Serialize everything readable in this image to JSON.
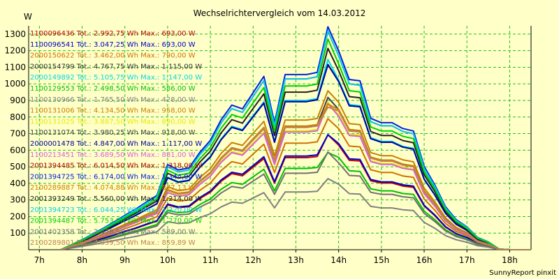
{
  "chart_data": {
    "type": "line",
    "title": "Wechselrichtervergleich vom 14.03.2012",
    "ylabel": "W",
    "footer": "SunnyReport pinxit",
    "ylim": [
      0,
      1350
    ],
    "xlim": [
      6.75,
      18.5
    ],
    "grid": true,
    "legend_placement": "top-left",
    "yticks": [
      100,
      200,
      300,
      400,
      500,
      600,
      700,
      800,
      900,
      1000,
      1100,
      1200,
      1300
    ],
    "xticks": [
      {
        "value": 7,
        "label": "7h"
      },
      {
        "value": 8,
        "label": "8h"
      },
      {
        "value": 9,
        "label": "9h"
      },
      {
        "value": 10,
        "label": "10h"
      },
      {
        "value": 11,
        "label": "11h"
      },
      {
        "value": 12,
        "label": "12h"
      },
      {
        "value": 13,
        "label": "13h"
      },
      {
        "value": 14,
        "label": "14h"
      },
      {
        "value": 15,
        "label": "15h"
      },
      {
        "value": 16,
        "label": "16h"
      },
      {
        "value": 17,
        "label": "17h"
      },
      {
        "value": 18,
        "label": "18h"
      }
    ],
    "x": [
      7.5,
      7.75,
      8,
      8.25,
      8.5,
      8.75,
      9,
      9.25,
      9.5,
      9.75,
      10,
      10.25,
      10.5,
      10.75,
      11,
      11.25,
      11.5,
      11.75,
      12,
      12.25,
      12.5,
      12.75,
      13,
      13.25,
      13.5,
      13.75,
      14,
      14.25,
      14.5,
      14.75,
      15,
      15.25,
      15.5,
      15.75,
      16,
      16.25,
      16.5,
      16.75,
      17,
      17.25,
      17.5,
      17.75,
      18,
      18.25,
      18.5
    ],
    "series": [
      {
        "name": "1100096436 Tot.: 2.992,75 Wh Max.: 693,00 W",
        "color": "#c00000",
        "values": [
          0,
          16,
          31,
          49,
          68,
          88,
          109,
          128,
          151,
          172,
          270,
          253,
          259,
          308,
          347,
          412,
          459,
          446,
          498,
          549,
          402,
          555,
          555,
          555,
          562,
          693,
          631,
          539,
          535,
          416,
          402,
          402,
          384,
          376,
          264,
          205,
          136,
          95,
          73,
          39,
          25,
          2,
          0,
          0,
          0
        ]
      },
      {
        "name": "1100096541 Tot.: 3.047,25 Wh Max.: 693,00 W",
        "color": "#0000c8",
        "values": [
          0,
          16,
          32,
          50,
          70,
          90,
          111,
          131,
          154,
          175,
          275,
          258,
          264,
          314,
          354,
          420,
          467,
          455,
          507,
          560,
          410,
          565,
          565,
          565,
          572,
          693,
          640,
          548,
          544,
          423,
          409,
          409,
          391,
          383,
          268,
          209,
          139,
          97,
          74,
          40,
          25,
          2,
          0,
          0,
          0
        ]
      },
      {
        "name": "2000150622 Tot.: 3.462,00 Wh Max.: 790,00 W",
        "color": "#d07000",
        "values": [
          0,
          18,
          36,
          57,
          79,
          102,
          126,
          149,
          175,
          199,
          312,
          293,
          300,
          357,
          402,
          477,
          531,
          517,
          577,
          636,
          466,
          642,
          642,
          642,
          650,
          790,
          730,
          625,
          620,
          482,
          466,
          466,
          445,
          436,
          306,
          238,
          158,
          110,
          85,
          45,
          29,
          2,
          0,
          0,
          0
        ]
      },
      {
        "name": "2000154799 Tot.: 4.767,75 Wh Max.: 1.115,00 W",
        "color": "#303030",
        "values": [
          0,
          25,
          50,
          80,
          110,
          142,
          175,
          206,
          243,
          277,
          434,
          407,
          417,
          496,
          559,
          663,
          738,
          719,
          802,
          884,
          648,
          893,
          893,
          893,
          904,
          1115,
          1015,
          868,
          862,
          670,
          648,
          648,
          619,
          606,
          425,
          330,
          219,
          153,
          117,
          63,
          40,
          3,
          0,
          0,
          0
        ]
      },
      {
        "name": "2000149892 Tot.: 5.105,75 Wh Max.: 1.147,00 W",
        "color": "#00d8e8",
        "values": [
          0,
          25,
          50,
          80,
          110,
          143,
          176,
          208,
          244,
          279,
          437,
          410,
          420,
          500,
          563,
          668,
          744,
          724,
          808,
          891,
          653,
          900,
          900,
          900,
          911,
          1147,
          1023,
          875,
          868,
          675,
          653,
          653,
          623,
          611,
          428,
          333,
          221,
          154,
          118,
          63,
          40,
          3,
          0,
          0,
          0
        ]
      },
      {
        "name": "1100129553 Tot.: 2.498,50 Wh Max.: 586,00 W",
        "color": "#00c000",
        "values": [
          0,
          14,
          28,
          44,
          60,
          78,
          96,
          113,
          133,
          152,
          238,
          223,
          229,
          272,
          306,
          364,
          405,
          394,
          440,
          485,
          355,
          490,
          490,
          490,
          496,
          586,
          557,
          476,
          472,
          367,
          355,
          355,
          339,
          333,
          233,
          181,
          120,
          84,
          64,
          34,
          22,
          2,
          0,
          0,
          0
        ]
      },
      {
        "name": "1100130966 Tot.: 1.765,50 Wh Max.: 428,00 W",
        "color": "#808080",
        "values": [
          0,
          10,
          20,
          31,
          43,
          55,
          68,
          80,
          94,
          108,
          169,
          158,
          162,
          193,
          217,
          258,
          287,
          280,
          312,
          344,
          252,
          348,
          348,
          348,
          352,
          428,
          395,
          338,
          335,
          261,
          252,
          252,
          241,
          236,
          165,
          129,
          85,
          60,
          45,
          24,
          15,
          1,
          0,
          0,
          0
        ]
      },
      {
        "name": "1100131006 Tot.: 4.134,50 Wh Max.: 958,00 W",
        "color": "#c88000",
        "values": [
          0,
          22,
          44,
          70,
          96,
          124,
          153,
          180,
          212,
          242,
          380,
          356,
          365,
          434,
          489,
          580,
          646,
          629,
          702,
          774,
          567,
          782,
          782,
          782,
          791,
          958,
          889,
          760,
          754,
          586,
          567,
          567,
          542,
          530,
          372,
          289,
          192,
          134,
          103,
          55,
          35,
          3,
          0,
          0,
          0
        ]
      },
      {
        "name": "1100131025 Tot.: 3.887,50 Wh Max.: 890,00 W",
        "color": "#e8e800",
        "values": [
          0,
          20,
          40,
          64,
          88,
          114,
          140,
          165,
          194,
          222,
          348,
          327,
          335,
          398,
          448,
          532,
          592,
          576,
          643,
          709,
          520,
          717,
          717,
          717,
          725,
          890,
          814,
          696,
          691,
          537,
          520,
          520,
          497,
          486,
          341,
          265,
          176,
          123,
          94,
          50,
          32,
          2,
          0,
          0,
          0
        ]
      },
      {
        "name": "1100131074 Tot.: 3.980,25 Wh Max.: 918,00 W",
        "color": "#404040",
        "values": [
          0,
          21,
          42,
          67,
          92,
          118,
          146,
          172,
          202,
          231,
          362,
          340,
          348,
          414,
          466,
          553,
          615,
          599,
          669,
          737,
          540,
          745,
          745,
          745,
          754,
          918,
          846,
          724,
          718,
          558,
          540,
          540,
          516,
          505,
          354,
          275,
          183,
          128,
          98,
          52,
          33,
          3,
          0,
          0,
          0
        ]
      },
      {
        "name": "2000001478 Tot.: 4.847,00 Wh Max.: 1.117,00 W",
        "color": "#0000a0",
        "values": [
          0,
          25,
          50,
          80,
          110,
          142,
          175,
          206,
          243,
          277,
          434,
          407,
          417,
          496,
          559,
          663,
          738,
          719,
          802,
          884,
          648,
          893,
          893,
          893,
          904,
          1117,
          1015,
          868,
          862,
          670,
          648,
          648,
          619,
          606,
          425,
          330,
          219,
          153,
          117,
          63,
          40,
          3,
          0,
          0,
          0
        ]
      },
      {
        "name": "1100213451 Tot.: 3.689,50 Wh Max.: 881,00 W",
        "color": "#d860d8",
        "values": [
          0,
          20,
          40,
          63,
          87,
          112,
          138,
          163,
          192,
          219,
          344,
          323,
          331,
          393,
          443,
          526,
          585,
          570,
          636,
          701,
          514,
          709,
          709,
          709,
          717,
          881,
          805,
          689,
          683,
          531,
          514,
          514,
          491,
          481,
          337,
          262,
          174,
          121,
          93,
          50,
          32,
          2,
          0,
          0,
          0
        ]
      },
      {
        "name": "2001394485 Tot.: 6.014,50 Wh Max.: 1.318,00 W",
        "color": "#b00000",
        "values": [
          0,
          29,
          58,
          92,
          126,
          163,
          201,
          238,
          280,
          319,
          500,
          469,
          481,
          572,
          644,
          764,
          851,
          828,
          924,
          1020,
          747,
          1030,
          1030,
          1030,
          1043,
          1318,
          1170,
          1000,
          992,
          772,
          747,
          747,
          713,
          699,
          490,
          380,
          252,
          176,
          135,
          72,
          46,
          4,
          0,
          0,
          0
        ]
      },
      {
        "name": "2001394725 Tot.: 6.174,00 Wh Max.: 1.344,00 W",
        "color": "#0020e0",
        "values": [
          0,
          30,
          60,
          95,
          130,
          168,
          207,
          244,
          287,
          327,
          513,
          481,
          493,
          586,
          660,
          783,
          872,
          849,
          947,
          1045,
          766,
          1056,
          1056,
          1056,
          1069,
          1344,
          1200,
          1026,
          1018,
          792,
          766,
          766,
          731,
          716,
          502,
          390,
          259,
          181,
          138,
          74,
          47,
          4,
          0,
          0,
          0
        ]
      },
      {
        "name": "2100289887 Tot.: 4.074,88 Wh Max.: 877,13 W",
        "color": "#d08000",
        "values": [
          0,
          21,
          42,
          67,
          92,
          118,
          146,
          172,
          202,
          231,
          362,
          340,
          348,
          414,
          466,
          553,
          615,
          599,
          669,
          737,
          540,
          745,
          745,
          745,
          754,
          877,
          846,
          724,
          718,
          558,
          540,
          540,
          516,
          505,
          354,
          275,
          183,
          128,
          98,
          52,
          33,
          3,
          0,
          0,
          0
        ]
      },
      {
        "name": "2001393249 Tot.: 5.560,00 Wh Max.: 1.214,00 W",
        "color": "#202020",
        "values": [
          0,
          27,
          54,
          85,
          117,
          151,
          186,
          219,
          258,
          294,
          461,
          432,
          443,
          527,
          594,
          704,
          784,
          763,
          852,
          940,
          689,
          950,
          950,
          950,
          962,
          1214,
          1080,
          923,
          916,
          713,
          689,
          689,
          658,
          645,
          452,
          351,
          233,
          163,
          124,
          67,
          43,
          3,
          0,
          0,
          0
        ]
      },
      {
        "name": "2001394723 Tot.: 6.044,25 Wh Max.: 1.320,00 W",
        "color": "#00d0f0",
        "values": [
          0,
          29,
          58,
          92,
          126,
          163,
          201,
          238,
          280,
          319,
          500,
          469,
          481,
          572,
          644,
          764,
          851,
          828,
          924,
          1020,
          747,
          1030,
          1030,
          1030,
          1043,
          1320,
          1170,
          1000,
          992,
          772,
          747,
          747,
          713,
          699,
          490,
          380,
          252,
          176,
          135,
          72,
          46,
          4,
          0,
          0,
          0
        ]
      },
      {
        "name": "2001394487 Tot.: 5.753,00 Wh Max.: 1.270,00 W",
        "color": "#00d000",
        "values": [
          0,
          28,
          56,
          88,
          121,
          156,
          193,
          228,
          268,
          306,
          479,
          449,
          461,
          548,
          617,
          732,
          815,
          794,
          886,
          977,
          716,
          987,
          987,
          987,
          999,
          1270,
          1121,
          959,
          951,
          740,
          716,
          716,
          684,
          670,
          470,
          365,
          242,
          169,
          129,
          69,
          44,
          4,
          0,
          0,
          0
        ]
      },
      {
        "name": "2001402358 Tot.: 2.478,50 Wh Max.: 589,00 W",
        "color": "#707070",
        "values": [
          0,
          13,
          26,
          41,
          57,
          73,
          90,
          106,
          125,
          143,
          224,
          210,
          215,
          256,
          288,
          342,
          381,
          371,
          414,
          456,
          334,
          461,
          461,
          461,
          467,
          589,
          524,
          448,
          444,
          346,
          334,
          334,
          319,
          313,
          219,
          170,
          113,
          79,
          60,
          32,
          21,
          2,
          0,
          0,
          0
        ]
      },
      {
        "name": "2100289801 Tot.: 4.039,50 Wh Max.: 859,89 W",
        "color": "#c08050",
        "values": [
          0,
          21,
          42,
          67,
          91,
          117,
          144,
          170,
          200,
          228,
          358,
          336,
          344,
          409,
          461,
          547,
          609,
          593,
          662,
          729,
          534,
          737,
          737,
          737,
          746,
          859,
          837,
          716,
          710,
          552,
          534,
          534,
          510,
          500,
          350,
          272,
          181,
          126,
          97,
          52,
          33,
          3,
          0,
          0,
          0
        ]
      }
    ]
  }
}
